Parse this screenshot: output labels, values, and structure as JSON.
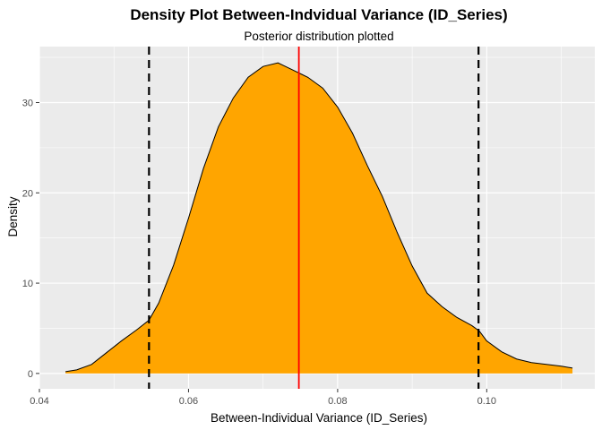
{
  "chart_data": {
    "type": "area",
    "title": "Density Plot Between-Indvidual Variance (ID_Series)",
    "subtitle": "Posterior distribution plotted",
    "xlabel": "Between-Individual Variance (ID_Series)",
    "ylabel": "Density",
    "xlim": [
      0.04,
      0.1145
    ],
    "ylim": [
      -1.7,
      36.2
    ],
    "x_ticks": [
      0.04,
      0.06,
      0.08,
      0.1
    ],
    "x_tick_labels": [
      "0.04",
      "0.06",
      "0.08",
      "0.10"
    ],
    "y_ticks": [
      0,
      10,
      20,
      30
    ],
    "y_tick_labels": [
      "0",
      "10",
      "20",
      "30"
    ],
    "grid": true,
    "series": [
      {
        "fill": "#FFA500",
        "x": [
          0.0435,
          0.045,
          0.047,
          0.049,
          0.051,
          0.053,
          0.0547,
          0.056,
          0.058,
          0.06,
          0.062,
          0.064,
          0.066,
          0.068,
          0.07,
          0.072,
          0.073,
          0.074,
          0.075,
          0.076,
          0.078,
          0.08,
          0.082,
          0.084,
          0.086,
          0.088,
          0.09,
          0.092,
          0.094,
          0.096,
          0.098,
          0.099,
          0.1,
          0.102,
          0.104,
          0.106,
          0.108,
          0.11,
          0.1115
        ],
        "y": [
          0.2,
          0.4,
          1.0,
          2.3,
          3.6,
          4.8,
          5.9,
          7.8,
          12.0,
          17.2,
          22.7,
          27.3,
          30.5,
          32.8,
          34.0,
          34.4,
          34.0,
          33.6,
          33.2,
          32.8,
          31.6,
          29.5,
          26.6,
          23.0,
          19.6,
          15.6,
          11.9,
          8.9,
          7.4,
          6.2,
          5.3,
          4.7,
          3.6,
          2.4,
          1.6,
          1.2,
          1.0,
          0.8,
          0.6
        ]
      }
    ],
    "vlines": [
      {
        "x": 0.0547,
        "color": "#000000",
        "style": "dashed"
      },
      {
        "x": 0.0989,
        "color": "#000000",
        "style": "dashed"
      },
      {
        "x": 0.0748,
        "color": "#FF0000",
        "style": "solid"
      }
    ],
    "legend": "none"
  }
}
